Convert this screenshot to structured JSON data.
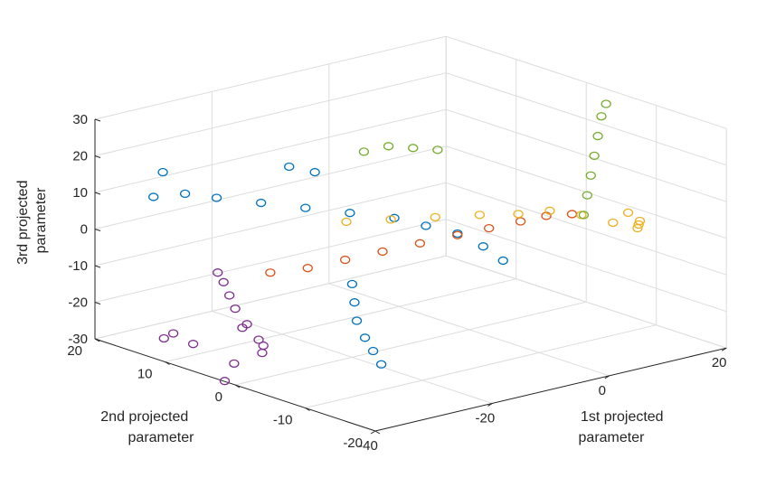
{
  "chart_data": {
    "type": "scatter",
    "title": "",
    "xlabel": "1st projected parameter",
    "ylabel": "2nd projected parameter",
    "zlabel": "3rd projected parameter",
    "xlabel_lines": [
      "1st projected",
      "parameter"
    ],
    "ylabel_lines": [
      "2nd projected",
      "parameter"
    ],
    "zlabel_lines": [
      "3rd projected",
      "parameter"
    ],
    "xlim": [
      -40,
      20
    ],
    "ylim": [
      -20,
      20
    ],
    "zlim": [
      -30,
      30
    ],
    "xticks": [
      {
        "value": -40,
        "label": "-40"
      },
      {
        "value": -20,
        "label": "-20"
      },
      {
        "value": 0,
        "label": "0"
      },
      {
        "value": 20,
        "label": "20"
      }
    ],
    "yticks": [
      {
        "value": -20,
        "label": "-20"
      },
      {
        "value": -10,
        "label": "-10"
      },
      {
        "value": 0,
        "label": "0"
      },
      {
        "value": 10,
        "label": "10"
      },
      {
        "value": 20,
        "label": "20"
      }
    ],
    "zticks": [
      {
        "value": -30,
        "label": "-30"
      },
      {
        "value": -20,
        "label": "-20"
      },
      {
        "value": -10,
        "label": "-10"
      },
      {
        "value": 0,
        "label": "0"
      },
      {
        "value": 10,
        "label": "10"
      },
      {
        "value": 20,
        "label": "20"
      },
      {
        "value": 30,
        "label": "30"
      }
    ],
    "grid": true,
    "marker": "open-circle",
    "series": [
      {
        "color": "#0072BD",
        "points": [
          [
            -30,
            20,
            5
          ],
          [
            -27,
            18,
            6
          ],
          [
            -24,
            16,
            5
          ],
          [
            -20,
            13,
            4
          ],
          [
            -16,
            10,
            3
          ],
          [
            -12,
            7,
            2
          ],
          [
            -8,
            4,
            1
          ],
          [
            -5,
            2,
            -1
          ],
          [
            -2,
            0,
            -3
          ],
          [
            0,
            -2,
            -6
          ],
          [
            1,
            -4,
            -9
          ],
          [
            -12,
            12,
            10
          ],
          [
            -14,
            14,
            11
          ],
          [
            -26,
            22,
            9
          ],
          [
            -20,
            0,
            -10
          ],
          [
            -22,
            -2,
            -13
          ],
          [
            -24,
            -4,
            -16
          ],
          [
            -25,
            -6,
            -19
          ],
          [
            -26,
            -8,
            -21
          ],
          [
            -27,
            -10,
            -23
          ]
        ]
      },
      {
        "color": "#D95319",
        "points": [
          [
            -28,
            5,
            -7
          ],
          [
            -24,
            3,
            -6
          ],
          [
            -20,
            1,
            -4
          ],
          [
            -16,
            -1,
            -2
          ],
          [
            -12,
            -3,
            0
          ],
          [
            -8,
            -5,
            2
          ],
          [
            -5,
            -7,
            4
          ],
          [
            -2,
            -9,
            6
          ],
          [
            0,
            -11,
            8
          ],
          [
            2,
            -13,
            9
          ]
        ]
      },
      {
        "color": "#EDB120",
        "points": [
          [
            -15,
            5,
            2
          ],
          [
            -11,
            2,
            3
          ],
          [
            -7,
            -1,
            4
          ],
          [
            -3,
            -4,
            5
          ],
          [
            0,
            -7,
            6
          ],
          [
            3,
            -9,
            7
          ],
          [
            6,
            -11,
            6
          ],
          [
            9,
            -13,
            4
          ],
          [
            12,
            -14,
            2
          ],
          [
            11,
            -15,
            4
          ],
          [
            10,
            -16,
            6
          ],
          [
            8,
            -16,
            9
          ]
        ]
      },
      {
        "color": "#77AC30",
        "points": [
          [
            4,
            -13,
            8
          ],
          [
            7,
            -11,
            11
          ],
          [
            10,
            -9,
            14
          ],
          [
            13,
            -7,
            17
          ],
          [
            16,
            -5,
            20
          ],
          [
            19,
            -3,
            23
          ],
          [
            21,
            -2,
            25
          ],
          [
            -12,
            5,
            20
          ],
          [
            -9,
            4,
            21
          ],
          [
            -6,
            3,
            20
          ],
          [
            -3,
            2,
            19
          ]
        ]
      },
      {
        "color": "#7E2F8E",
        "points": [
          [
            -31,
            10,
            -9
          ],
          [
            -30,
            10,
            -12
          ],
          [
            -29,
            10,
            -16
          ],
          [
            -28,
            10,
            -20
          ],
          [
            -26,
            10,
            -25
          ],
          [
            -24,
            10,
            -30
          ],
          [
            -22,
            11,
            -33
          ],
          [
            -21,
            12,
            -36
          ],
          [
            -22,
            14,
            -30
          ],
          [
            -27,
            11,
            -36
          ],
          [
            -31,
            9,
            -38
          ],
          [
            -34,
            11,
            -28
          ],
          [
            -35,
            13,
            -26
          ],
          [
            -33,
            16,
            -30
          ]
        ]
      }
    ]
  }
}
